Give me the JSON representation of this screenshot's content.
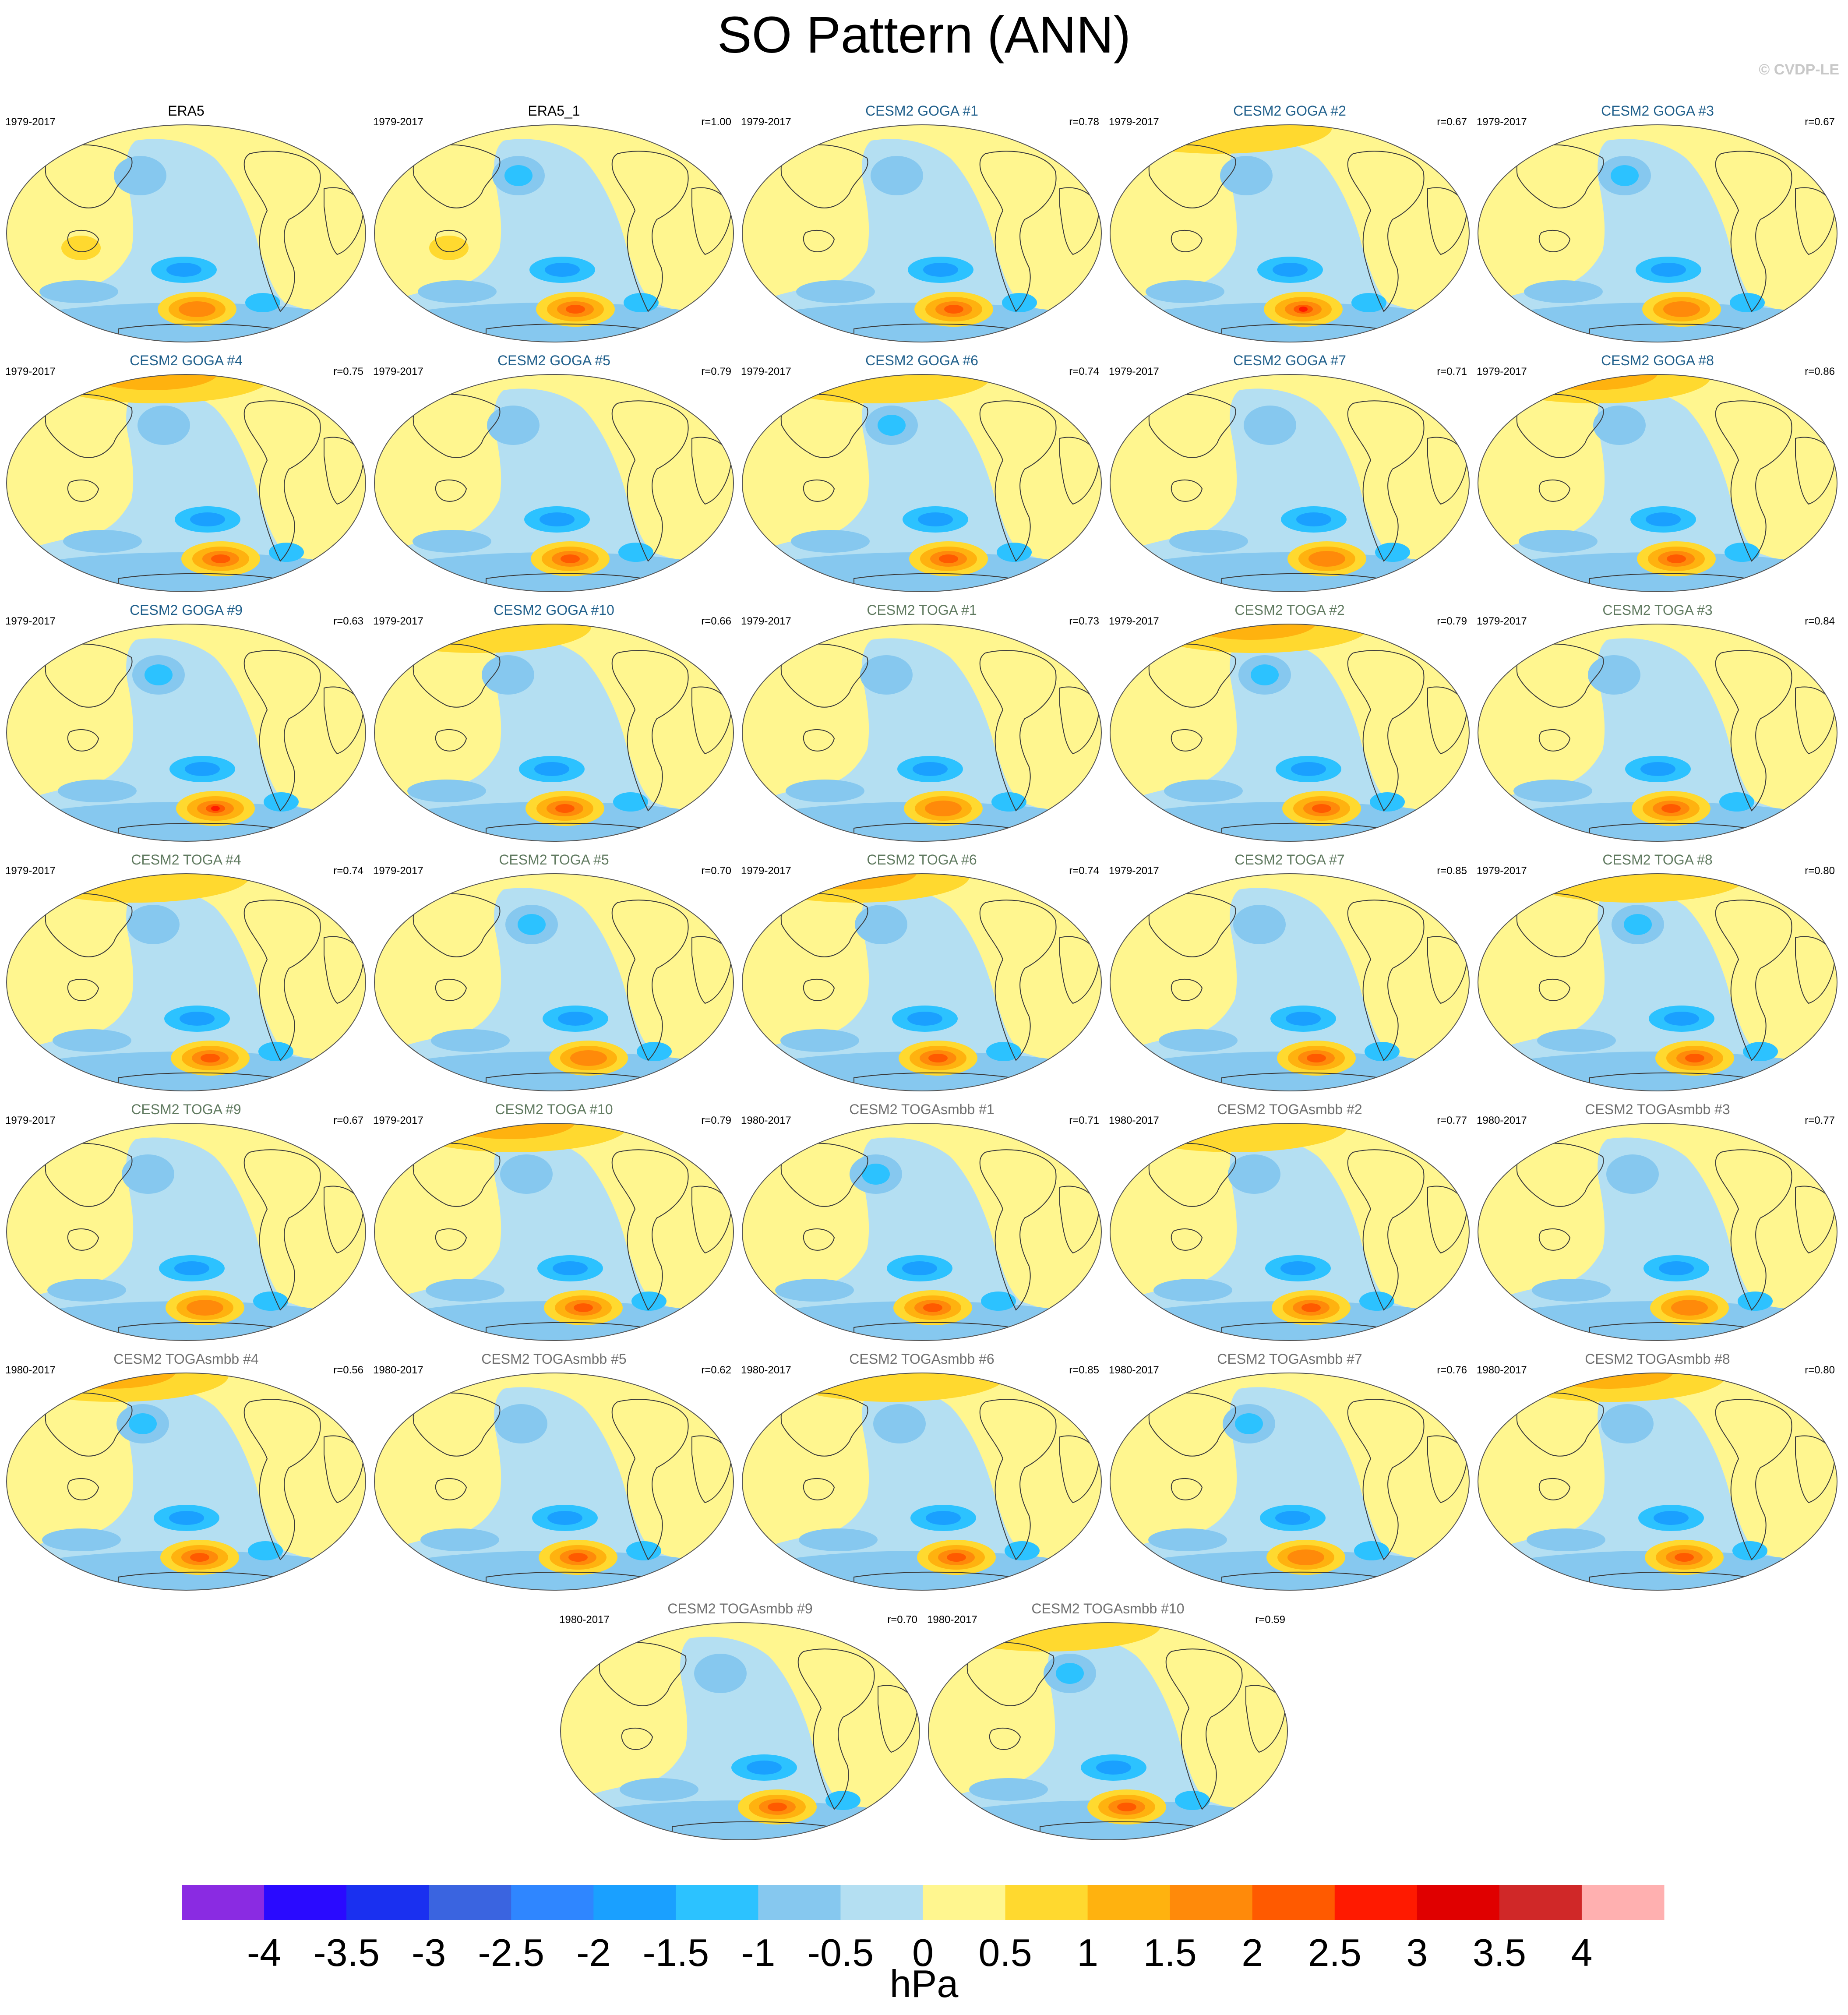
{
  "title": "SO Pattern (ANN)",
  "copyright": "© CVDP-LE",
  "colors": {
    "goga_title": "#1f5f8b",
    "toga_title": "#607a60",
    "smbb_title": "#707070",
    "coastline": "#3a3a3a"
  },
  "panels": [
    {
      "name": "ERA5",
      "years": "1979-2017",
      "r": "",
      "group": "obs"
    },
    {
      "name": "ERA5_1",
      "years": "1979-2017",
      "r": "r=1.00",
      "group": "obs"
    },
    {
      "name": "CESM2 GOGA #1",
      "years": "1979-2017",
      "r": "r=0.78",
      "group": "goga"
    },
    {
      "name": "CESM2 GOGA #2",
      "years": "1979-2017",
      "r": "r=0.67",
      "group": "goga"
    },
    {
      "name": "CESM2 GOGA #3",
      "years": "1979-2017",
      "r": "r=0.67",
      "group": "goga"
    },
    {
      "name": "CESM2 GOGA #4",
      "years": "1979-2017",
      "r": "r=0.75",
      "group": "goga"
    },
    {
      "name": "CESM2 GOGA #5",
      "years": "1979-2017",
      "r": "r=0.79",
      "group": "goga"
    },
    {
      "name": "CESM2 GOGA #6",
      "years": "1979-2017",
      "r": "r=0.74",
      "group": "goga"
    },
    {
      "name": "CESM2 GOGA #7",
      "years": "1979-2017",
      "r": "r=0.71",
      "group": "goga"
    },
    {
      "name": "CESM2 GOGA #8",
      "years": "1979-2017",
      "r": "r=0.86",
      "group": "goga"
    },
    {
      "name": "CESM2 GOGA #9",
      "years": "1979-2017",
      "r": "r=0.63",
      "group": "goga"
    },
    {
      "name": "CESM2 GOGA #10",
      "years": "1979-2017",
      "r": "r=0.66",
      "group": "goga"
    },
    {
      "name": "CESM2 TOGA #1",
      "years": "1979-2017",
      "r": "r=0.73",
      "group": "toga"
    },
    {
      "name": "CESM2 TOGA #2",
      "years": "1979-2017",
      "r": "r=0.79",
      "group": "toga"
    },
    {
      "name": "CESM2 TOGA #3",
      "years": "1979-2017",
      "r": "r=0.84",
      "group": "toga"
    },
    {
      "name": "CESM2 TOGA #4",
      "years": "1979-2017",
      "r": "r=0.74",
      "group": "toga"
    },
    {
      "name": "CESM2 TOGA #5",
      "years": "1979-2017",
      "r": "r=0.70",
      "group": "toga"
    },
    {
      "name": "CESM2 TOGA #6",
      "years": "1979-2017",
      "r": "r=0.74",
      "group": "toga"
    },
    {
      "name": "CESM2 TOGA #7",
      "years": "1979-2017",
      "r": "r=0.85",
      "group": "toga"
    },
    {
      "name": "CESM2 TOGA #8",
      "years": "1979-2017",
      "r": "r=0.80",
      "group": "toga"
    },
    {
      "name": "CESM2 TOGA #9",
      "years": "1979-2017",
      "r": "r=0.67",
      "group": "toga"
    },
    {
      "name": "CESM2 TOGA #10",
      "years": "1979-2017",
      "r": "r=0.79",
      "group": "toga"
    },
    {
      "name": "CESM2 TOGAsmbb #1",
      "years": "1980-2017",
      "r": "r=0.71",
      "group": "smbb"
    },
    {
      "name": "CESM2 TOGAsmbb #2",
      "years": "1980-2017",
      "r": "r=0.77",
      "group": "smbb"
    },
    {
      "name": "CESM2 TOGAsmbb #3",
      "years": "1980-2017",
      "r": "r=0.77",
      "group": "smbb"
    },
    {
      "name": "CESM2 TOGAsmbb #4",
      "years": "1980-2017",
      "r": "r=0.56",
      "group": "smbb"
    },
    {
      "name": "CESM2 TOGAsmbb #5",
      "years": "1980-2017",
      "r": "r=0.62",
      "group": "smbb"
    },
    {
      "name": "CESM2 TOGAsmbb #6",
      "years": "1980-2017",
      "r": "r=0.85",
      "group": "smbb"
    },
    {
      "name": "CESM2 TOGAsmbb #7",
      "years": "1980-2017",
      "r": "r=0.76",
      "group": "smbb"
    },
    {
      "name": "CESM2 TOGAsmbb #8",
      "years": "1980-2017",
      "r": "r=0.80",
      "group": "smbb"
    },
    {
      "name": "CESM2 TOGAsmbb #9",
      "years": "1980-2017",
      "r": "r=0.70",
      "group": "smbb"
    },
    {
      "name": "CESM2 TOGAsmbb #10",
      "years": "1980-2017",
      "r": "r=0.59",
      "group": "smbb"
    }
  ],
  "colorbar": {
    "units": "hPa",
    "labels": [
      "-4",
      "-3.5",
      "-3",
      "-2.5",
      "-2",
      "-1.5",
      "-1",
      "-0.5",
      "0",
      "0.5",
      "1",
      "1.5",
      "2",
      "2.5",
      "3",
      "3.5",
      "4"
    ],
    "colors": [
      "#8a2be2",
      "#2a0aff",
      "#1a30f0",
      "#3a64e0",
      "#2f86ff",
      "#1aa0ff",
      "#2cc2ff",
      "#86c8ef",
      "#b4dff2",
      "#fff68f",
      "#ffd92f",
      "#ffb20f",
      "#ff8a0a",
      "#ff5a00",
      "#ff1a00",
      "#e00000",
      "#d02828",
      "#ffb0b0"
    ]
  }
}
